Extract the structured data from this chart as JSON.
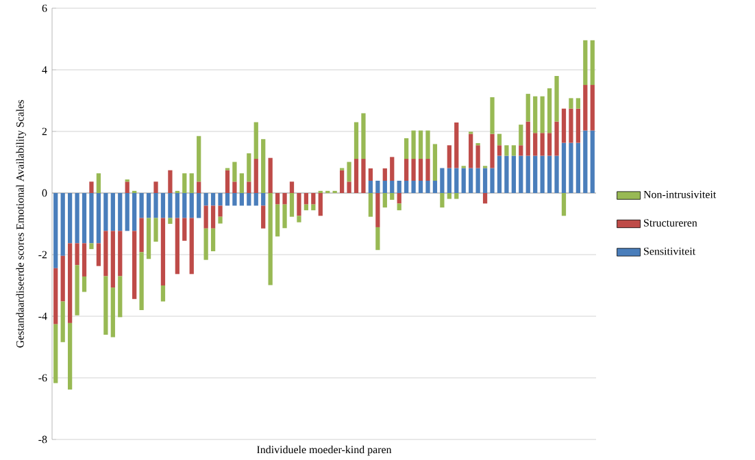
{
  "chart_data": {
    "type": "bar",
    "stacked": true,
    "xlabel": "Individuele moeder-kind paren",
    "ylabel": "Gestandaardiseerde scores Emotional Availability Scales",
    "categories": [
      null,
      null,
      null,
      null,
      null,
      null,
      null,
      null,
      null,
      null,
      null,
      null,
      null,
      null,
      null,
      null,
      null,
      null,
      null,
      null,
      null,
      null,
      null,
      null,
      null,
      null,
      null,
      null,
      null,
      null,
      null,
      null,
      null,
      null,
      null,
      null,
      null,
      null,
      null,
      null,
      null,
      null,
      null,
      null,
      null,
      null,
      null,
      null,
      null,
      null,
      null,
      null,
      null,
      null,
      null,
      null,
      null,
      null,
      null,
      null,
      null,
      null,
      null,
      null,
      null,
      null,
      null,
      null,
      null,
      null,
      null,
      null,
      null,
      null,
      null,
      null
    ],
    "series": [
      {
        "name": "Sensitiviteit",
        "color": "#4a7ebb",
        "values": [
          -2.44,
          -2.04,
          -1.63,
          -1.63,
          -1.63,
          -1.63,
          -1.63,
          -1.23,
          -1.23,
          -1.23,
          -1.23,
          -1.23,
          -0.81,
          -0.81,
          -0.81,
          -0.81,
          -0.81,
          -0.81,
          -0.81,
          -0.81,
          -0.81,
          -0.41,
          -0.41,
          -0.41,
          -0.41,
          -0.41,
          -0.41,
          -0.41,
          -0.41,
          -0.41,
          0,
          0,
          0,
          0,
          0,
          0,
          0,
          0,
          0,
          0,
          0,
          0,
          0,
          0,
          0.4,
          0.4,
          0.4,
          0.4,
          0.4,
          0.4,
          0.4,
          0.4,
          0.4,
          0.4,
          0.81,
          0.81,
          0.81,
          0.81,
          0.81,
          0.81,
          0.81,
          0.81,
          1.21,
          1.21,
          1.21,
          1.21,
          1.21,
          1.21,
          1.21,
          1.21,
          1.21,
          1.63,
          1.63,
          1.63,
          2.03,
          2.03
        ]
      },
      {
        "name": "Structureren",
        "color": "#be4b48",
        "values": [
          -1.82,
          -1.48,
          -2.59,
          -0.71,
          -1.08,
          0.37,
          -0.74,
          -1.47,
          -1.84,
          -1.47,
          0.37,
          -2.21,
          -1.11,
          0,
          0.37,
          -2.19,
          0.74,
          -1.82,
          -0.74,
          -1.82,
          0.37,
          -0.74,
          -0.74,
          -0.36,
          0.74,
          0.37,
          0,
          0.37,
          1.11,
          -0.74,
          1.14,
          -0.37,
          -0.37,
          0.37,
          -0.74,
          -0.37,
          -0.37,
          -0.74,
          0,
          0,
          0.74,
          0.37,
          1.11,
          1.11,
          0.4,
          -1.11,
          0.4,
          0.77,
          -0.34,
          0.71,
          0.71,
          0.71,
          0.71,
          0,
          0,
          0.74,
          1.48,
          0,
          1.11,
          0.74,
          -0.34,
          1.11,
          0.34,
          0,
          0,
          0.34,
          1.11,
          0.74,
          0.74,
          0.74,
          1.11,
          1.11,
          1.11,
          1.11,
          1.48,
          1.48
        ]
      },
      {
        "name": "Non-intrusiviteit",
        "color": "#98b954",
        "values": [
          -1.91,
          -1.32,
          -2.16,
          -1.63,
          -0.5,
          -0.19,
          0.64,
          -1.9,
          -1.61,
          -1.33,
          0.07,
          0.07,
          -1.88,
          -1.33,
          -0.77,
          -0.52,
          -0.19,
          0.07,
          0.64,
          0.64,
          1.48,
          -1.02,
          -0.74,
          -0.22,
          0.07,
          0.64,
          0.64,
          0.92,
          1.19,
          1.75,
          -2.99,
          -1.04,
          -0.77,
          -0.77,
          -0.21,
          -0.19,
          -0.19,
          0.07,
          0.07,
          0.07,
          0.07,
          0.64,
          1.19,
          1.48,
          -0.77,
          -0.74,
          -0.47,
          -0.22,
          -0.22,
          0.67,
          0.92,
          0.92,
          0.92,
          1.19,
          -0.47,
          -0.19,
          -0.19,
          0.07,
          0.07,
          0.07,
          0.07,
          1.19,
          0.37,
          0.34,
          0.34,
          0.67,
          0.9,
          1.19,
          1.19,
          1.45,
          1.48,
          -0.74,
          0.34,
          0.34,
          1.45,
          1.45
        ]
      }
    ],
    "ylim": [
      -8,
      6
    ],
    "yticks": [
      -8,
      -6,
      -4,
      -2,
      0,
      2,
      4,
      6
    ],
    "grid": "y",
    "legend": "right",
    "tick_labels": "y"
  }
}
